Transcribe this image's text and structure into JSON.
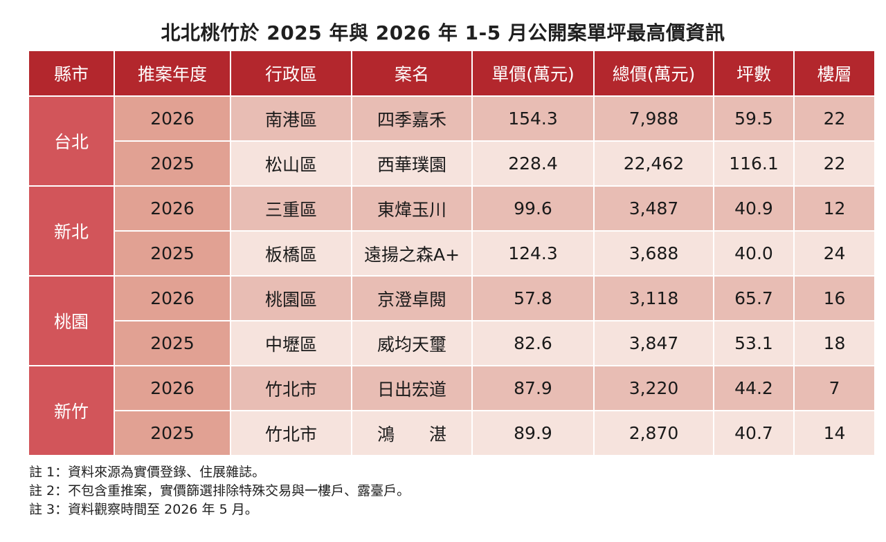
{
  "title": "北北桃竹於 2025 年與 2026 年 1-5 月公開案單坪最高價資訊",
  "headers": [
    "縣市",
    "推案年度",
    "行政區",
    "案名",
    "單價(萬元)",
    "總價(萬元)",
    "坪數",
    "樓層"
  ],
  "groups": [
    {
      "county": "台北",
      "rows": [
        {
          "year": "2026",
          "district": "南港區",
          "name": "四季嘉禾",
          "unit_price": "154.3",
          "total_price": "7,988",
          "ping": "59.5",
          "floor": "22"
        },
        {
          "year": "2025",
          "district": "松山區",
          "name": "西華璞園",
          "unit_price": "228.4",
          "total_price": "22,462",
          "ping": "116.1",
          "floor": "22"
        }
      ]
    },
    {
      "county": "新北",
      "rows": [
        {
          "year": "2026",
          "district": "三重區",
          "name": "東煒玉川",
          "unit_price": "99.6",
          "total_price": "3,487",
          "ping": "40.9",
          "floor": "12"
        },
        {
          "year": "2025",
          "district": "板橋區",
          "name": "遠揚之森A+",
          "unit_price": "124.3",
          "total_price": "3,688",
          "ping": "40.0",
          "floor": "24"
        }
      ]
    },
    {
      "county": "桃園",
      "rows": [
        {
          "year": "2026",
          "district": "桃園區",
          "name": "京澄卓閱",
          "unit_price": "57.8",
          "total_price": "3,118",
          "ping": "65.7",
          "floor": "16"
        },
        {
          "year": "2025",
          "district": "中壢區",
          "name": "威均天璽",
          "unit_price": "82.6",
          "total_price": "3,847",
          "ping": "53.1",
          "floor": "18"
        }
      ]
    },
    {
      "county": "新竹",
      "rows": [
        {
          "year": "2026",
          "district": "竹北市",
          "name": "日出宏道",
          "unit_price": "87.9",
          "total_price": "3,220",
          "ping": "44.2",
          "floor": "7"
        },
        {
          "year": "2025",
          "district": "竹北市",
          "name": "鴻　　湛",
          "unit_price": "89.9",
          "total_price": "2,870",
          "ping": "40.7",
          "floor": "14"
        }
      ]
    }
  ],
  "notes": [
    "註 1：資料來源為實價登錄、住展雜誌。",
    "註 2：不包含重推案，實價篩選排除特殊交易與一樓戶、露臺戶。",
    "註 3：資料觀察時間至 2026 年 5 月。"
  ]
}
